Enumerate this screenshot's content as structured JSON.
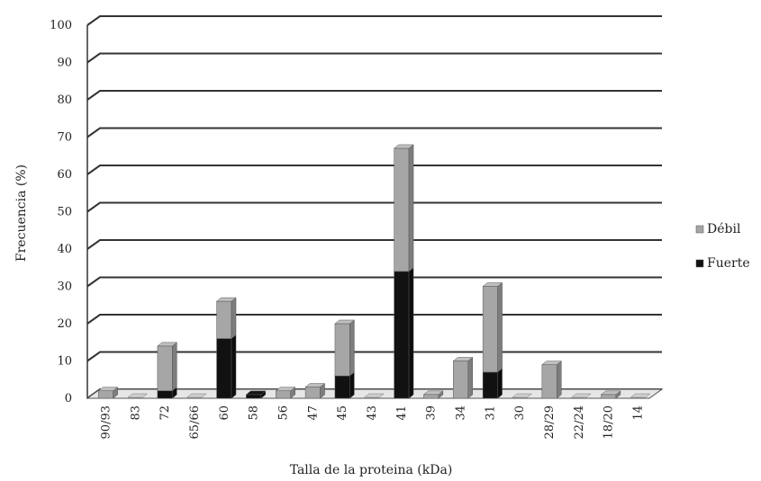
{
  "chart_data": {
    "type": "bar",
    "stacked": true,
    "title": "",
    "xlabel": "Talla de la proteina (kDa)",
    "ylabel": "Frecuencia (%)",
    "ylim": [
      0,
      100
    ],
    "yticks": [
      0,
      10,
      20,
      30,
      40,
      50,
      60,
      70,
      80,
      90,
      100
    ],
    "grid": true,
    "legend_position": "right",
    "categories": [
      "90/93",
      "83",
      "72",
      "65/66",
      "60",
      "58",
      "56",
      "47",
      "45",
      "43",
      "41",
      "39",
      "34",
      "31",
      "30",
      "28/29",
      "22/24",
      "18/20",
      "14"
    ],
    "series": [
      {
        "name": "Fuerte",
        "color": "#111111",
        "values": [
          0,
          0,
          2,
          0,
          16,
          1,
          0,
          0,
          6,
          0,
          34,
          0,
          0,
          7,
          0,
          0,
          0,
          0,
          0
        ]
      },
      {
        "name": "Débil",
        "color": "#a6a6a6",
        "values": [
          2,
          0,
          12,
          0,
          10,
          0,
          2,
          3,
          14,
          0,
          33,
          1,
          10,
          23,
          0,
          9,
          0,
          1,
          0
        ]
      }
    ]
  }
}
